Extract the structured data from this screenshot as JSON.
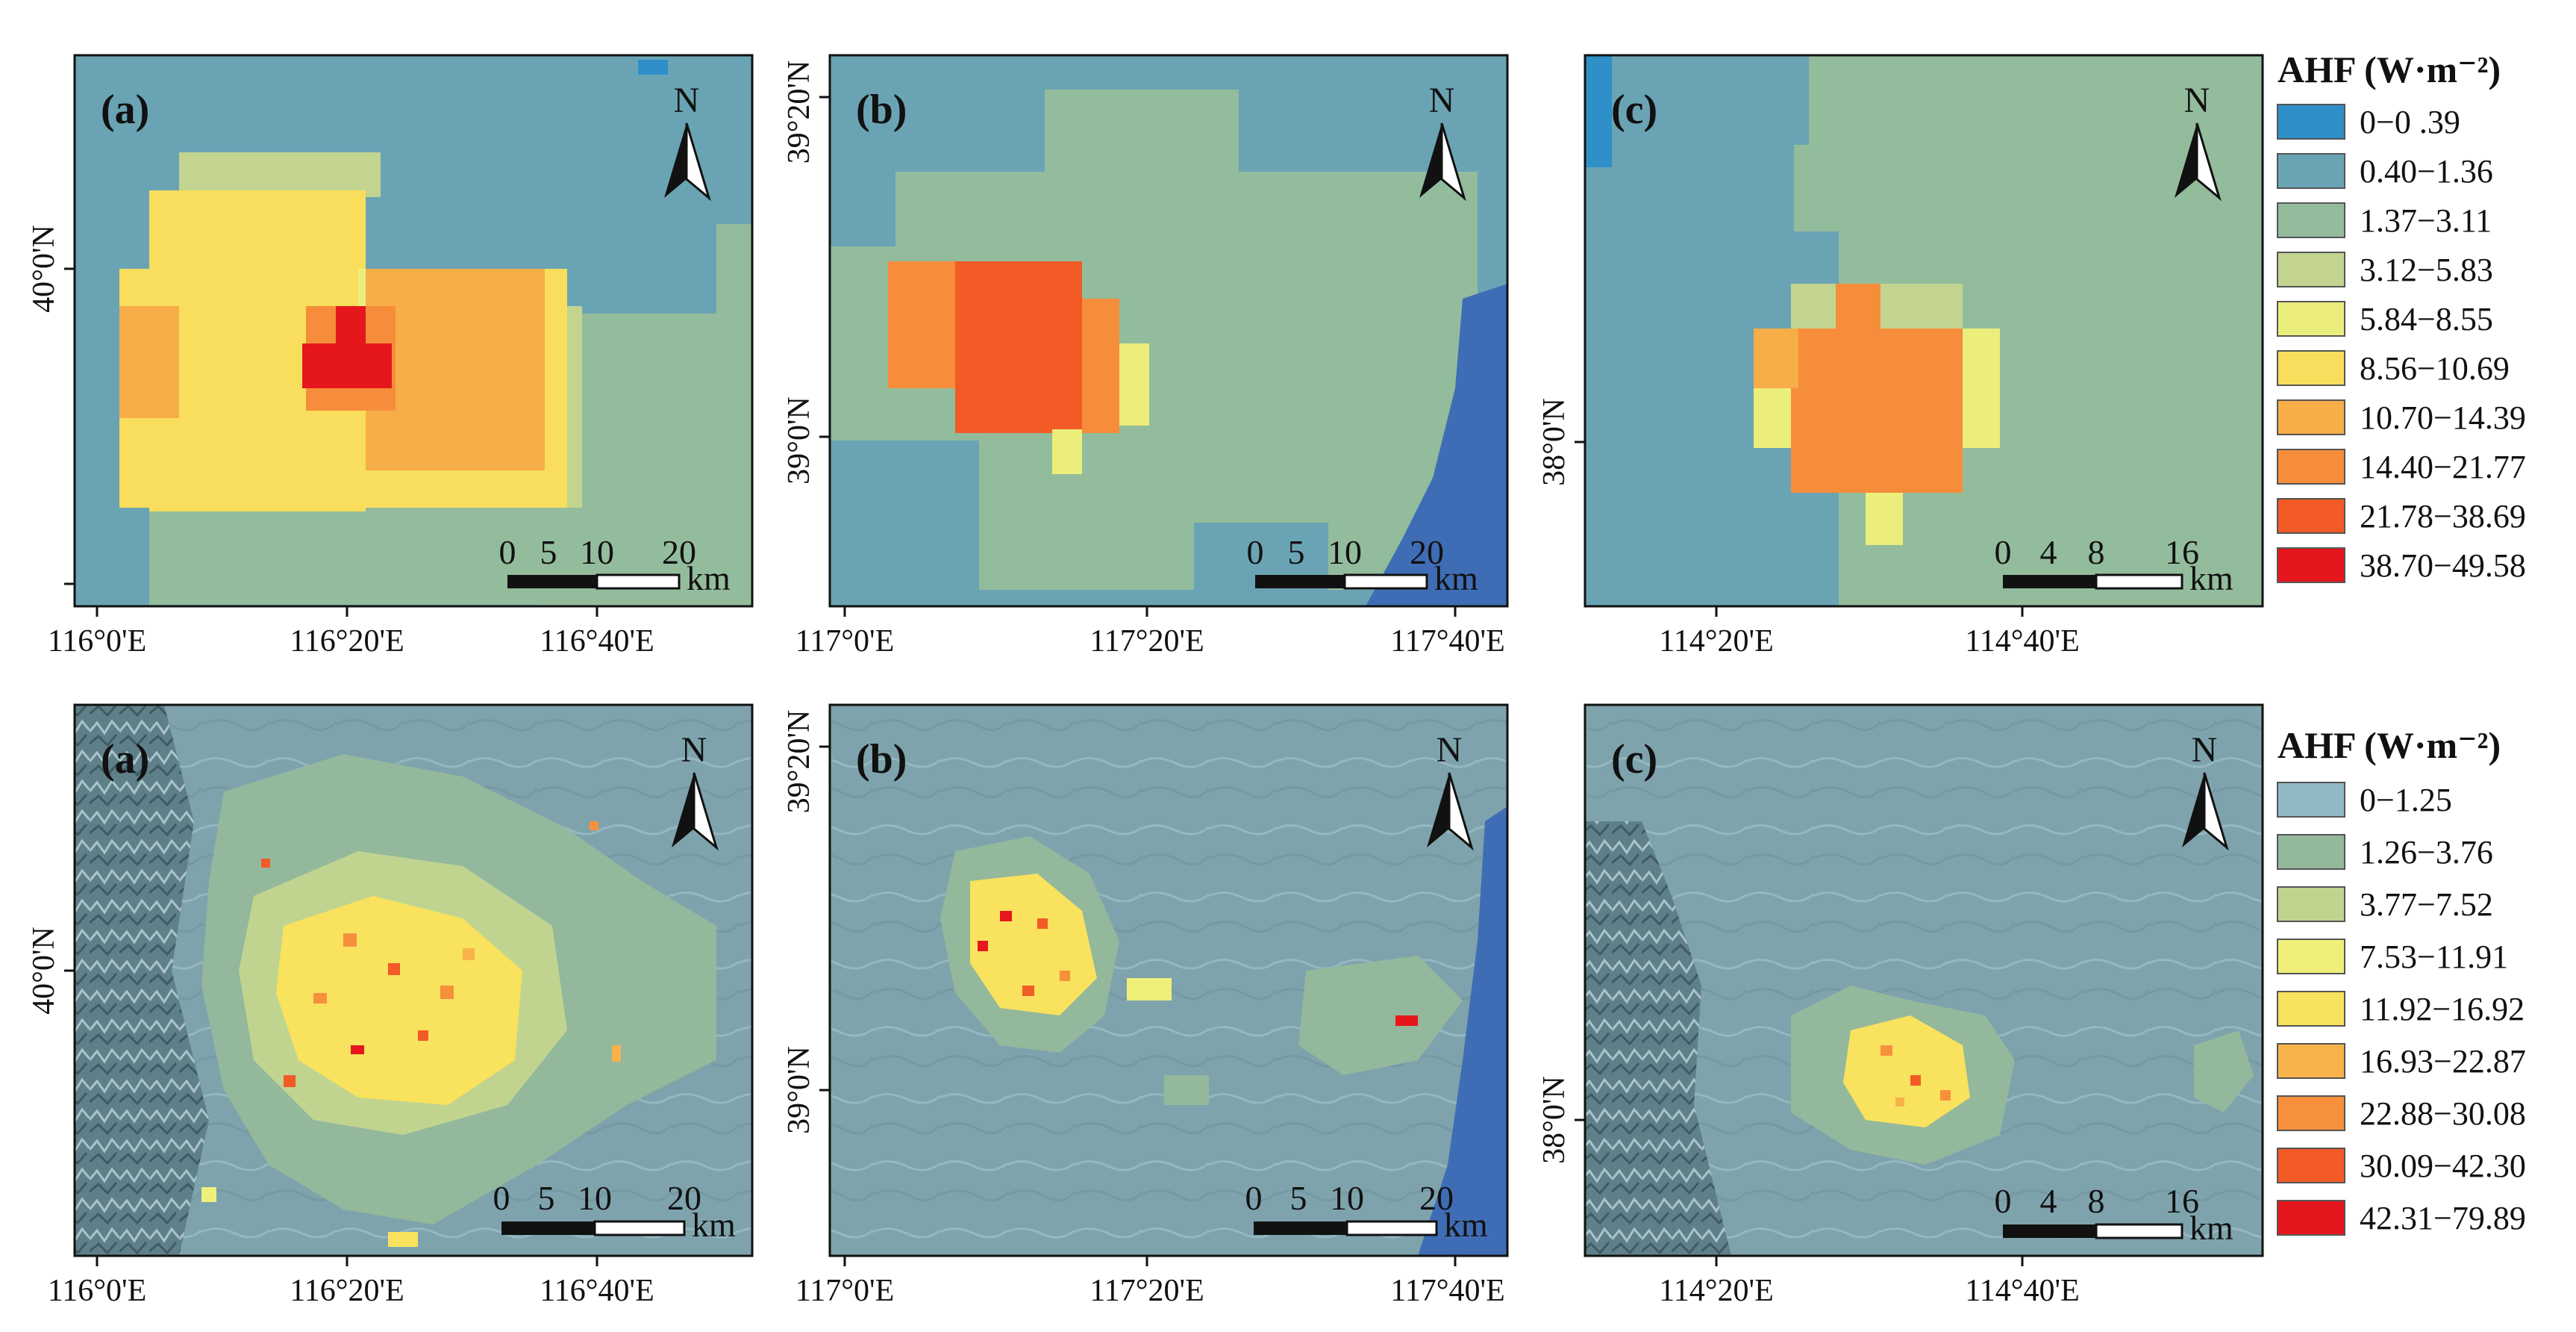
{
  "figure": {
    "rows": [
      {
        "id": "top",
        "panels": [
          {
            "letter": "(a)",
            "north": "N",
            "scale": {
              "ticks": [
                "0",
                "5",
                "10",
                "20"
              ],
              "unit": "km"
            },
            "x_ticks": [
              "116°0'E",
              "116°20'E",
              "116°40'E"
            ],
            "y_ticks": [
              "40°0'N"
            ]
          },
          {
            "letter": "(b)",
            "north": "N",
            "scale": {
              "ticks": [
                "0",
                "5",
                "10",
                "20"
              ],
              "unit": "km"
            },
            "x_ticks": [
              "117°0'E",
              "117°20'E",
              "117°40'E"
            ],
            "y_ticks": [
              "39°20'N",
              "39°0'N"
            ]
          },
          {
            "letter": "(c)",
            "north": "N",
            "scale": {
              "ticks": [
                "0",
                "4",
                "8",
                "16"
              ],
              "unit": "km"
            },
            "x_ticks": [
              "114°20'E",
              "114°40'E"
            ],
            "y_ticks": [
              "38°0'N"
            ]
          }
        ],
        "legend": {
          "title": "AHF (W·m⁻²)",
          "items": [
            {
              "label": "0−0 .39",
              "color": "#2e8fc9"
            },
            {
              "label": "0.40−1.36",
              "color": "#6aa4b4"
            },
            {
              "label": "1.37−3.11",
              "color": "#93bc9c"
            },
            {
              "label": "3.12−5.83",
              "color": "#c2d490"
            },
            {
              "label": "5.84−8.55",
              "color": "#ecee7c"
            },
            {
              "label": "8.56−10.69",
              "color": "#f8de5c"
            },
            {
              "label": "10.70−14.39",
              "color": "#f7ad48"
            },
            {
              "label": "14.40−21.77",
              "color": "#f68d3a"
            },
            {
              "label": "21.78−38.69",
              "color": "#f25a26"
            },
            {
              "label": "38.70−49.58",
              "color": "#e6171c"
            }
          ]
        }
      },
      {
        "id": "bottom",
        "panels": [
          {
            "letter": "(a)",
            "north": "N",
            "scale": {
              "ticks": [
                "0",
                "5",
                "10",
                "20"
              ],
              "unit": "km"
            },
            "x_ticks": [
              "116°0'E",
              "116°20'E",
              "116°40'E"
            ],
            "y_ticks": [
              "40°0'N"
            ]
          },
          {
            "letter": "(b)",
            "north": "N",
            "scale": {
              "ticks": [
                "0",
                "5",
                "10",
                "20"
              ],
              "unit": "km"
            },
            "x_ticks": [
              "117°0'E",
              "117°20'E",
              "117°40'E"
            ],
            "y_ticks": [
              "39°20'N",
              "39°0'N"
            ]
          },
          {
            "letter": "(c)",
            "north": "N",
            "scale": {
              "ticks": [
                "0",
                "4",
                "8",
                "16"
              ],
              "unit": "km"
            },
            "x_ticks": [
              "114°20'E",
              "114°40'E"
            ],
            "y_ticks": [
              "38°0'N"
            ]
          }
        ],
        "legend": {
          "title": "AHF (W·m⁻²)",
          "items": [
            {
              "label": "0−1.25",
              "color": "#8fb9c4"
            },
            {
              "label": "1.26−3.76",
              "color": "#93b89c"
            },
            {
              "label": "3.77−7.52",
              "color": "#c0d490"
            },
            {
              "label": "7.53−11.91",
              "color": "#eef07a"
            },
            {
              "label": "11.92−16.92",
              "color": "#f9e25e"
            },
            {
              "label": "16.93−22.87",
              "color": "#f7b34a"
            },
            {
              "label": "22.88−30.08",
              "color": "#f6903b"
            },
            {
              "label": "30.09−42.30",
              "color": "#f25a26"
            },
            {
              "label": "42.31−79.89",
              "color": "#e6171c"
            }
          ]
        }
      }
    ],
    "colors": {
      "sea": "#3f6db5",
      "bg_blue": "#6aa4b4",
      "greenish": "#93bc9c",
      "light_green": "#c2d490",
      "yellow_light": "#ecee7c",
      "yellow": "#f8de5c",
      "orange_light": "#f7ad48",
      "orange": "#f68d3a",
      "orange_red": "#f25a26",
      "red": "#e6171c",
      "hillshade_base": "#7ea3ad"
    }
  }
}
